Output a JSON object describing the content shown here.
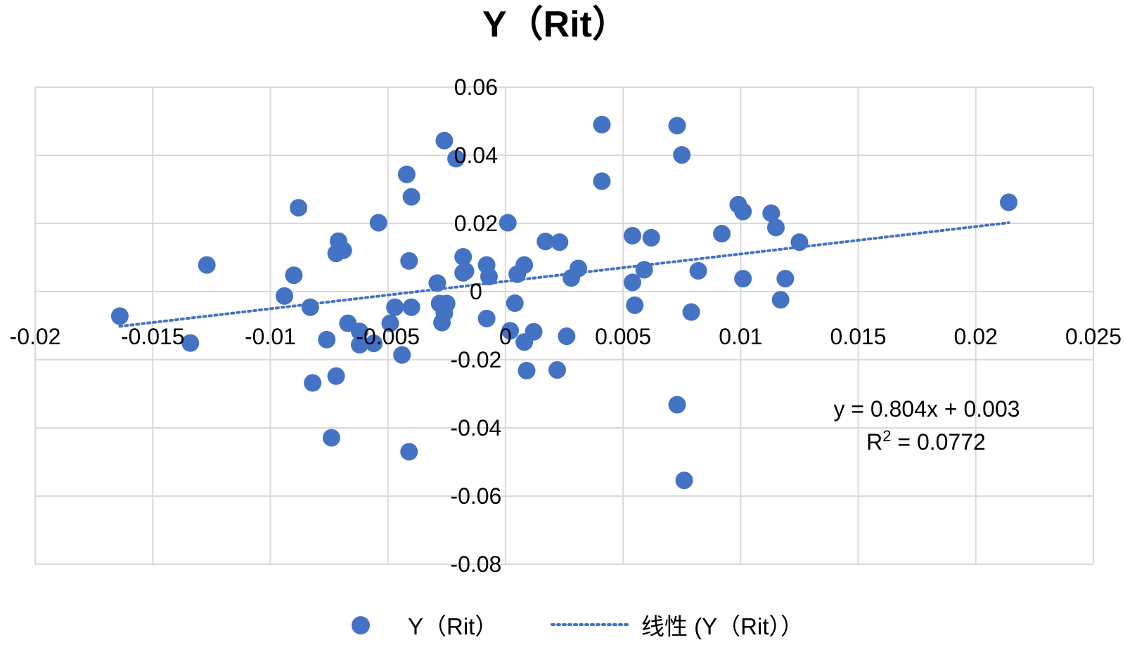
{
  "colors": {
    "marker": "#4472C4",
    "trendline": "#4472C4",
    "grid": "#D9D9D9",
    "text": "#000000"
  },
  "chart_data": {
    "type": "scatter",
    "title": "Y（Rit）",
    "xlim": [
      -0.02,
      0.025
    ],
    "ylim": [
      -0.08,
      0.06
    ],
    "x_ticks": [
      -0.02,
      -0.015,
      -0.01,
      -0.005,
      0,
      0.005,
      0.01,
      0.015,
      0.02,
      0.025
    ],
    "x_tick_labels": [
      "-0.02",
      "-0.015",
      "-0.01",
      "-0.005",
      "0",
      "0.005",
      "0.01",
      "0.015",
      "0.02",
      "0.025"
    ],
    "y_ticks": [
      -0.08,
      -0.06,
      -0.04,
      -0.02,
      0,
      0.02,
      0.04,
      0.06
    ],
    "y_tick_labels": [
      "-0.08",
      "-0.06",
      "-0.04",
      "-0.02",
      "0",
      "0.02",
      "0.04",
      "0.06"
    ],
    "grid": true,
    "legend_position": "bottom",
    "series": [
      {
        "name": "Y（Rit）",
        "kind": "scatter",
        "points": [
          [
            -0.0164,
            -0.0072
          ],
          [
            -0.0134,
            -0.0151
          ],
          [
            -0.0127,
            0.0078
          ],
          [
            -0.0094,
            -0.0013
          ],
          [
            -0.009,
            0.0048
          ],
          [
            -0.0088,
            0.0246
          ],
          [
            -0.0083,
            -0.0046
          ],
          [
            -0.0082,
            -0.0268
          ],
          [
            -0.0076,
            -0.0141
          ],
          [
            -0.0074,
            -0.0429
          ],
          [
            -0.0072,
            -0.0248
          ],
          [
            -0.0071,
            0.0148
          ],
          [
            -0.0072,
            0.0112
          ],
          [
            -0.0069,
            0.0121
          ],
          [
            -0.0067,
            -0.0093
          ],
          [
            -0.0062,
            -0.0117
          ],
          [
            -0.0062,
            -0.0156
          ],
          [
            -0.0056,
            -0.0152
          ],
          [
            -0.0054,
            0.0202
          ],
          [
            -0.0049,
            -0.0093
          ],
          [
            -0.0047,
            -0.0046
          ],
          [
            -0.0044,
            -0.0186
          ],
          [
            -0.0042,
            0.0344
          ],
          [
            -0.0041,
            0.009
          ],
          [
            -0.0041,
            -0.047
          ],
          [
            -0.004,
            -0.0046
          ],
          [
            -0.004,
            0.0278
          ],
          [
            -0.0029,
            0.0025
          ],
          [
            -0.0028,
            -0.0035
          ],
          [
            -0.0027,
            -0.0091
          ],
          [
            -0.0026,
            -0.0063
          ],
          [
            -0.0026,
            0.0443
          ],
          [
            -0.0025,
            -0.0035
          ],
          [
            -0.0021,
            0.039
          ],
          [
            -0.0018,
            0.0102
          ],
          [
            -0.0018,
            0.0055
          ],
          [
            -0.0017,
            0.006
          ],
          [
            -0.0008,
            -0.0079
          ],
          [
            -0.0008,
            0.0078
          ],
          [
            -0.0007,
            0.0044
          ],
          [
            0.0001,
            0.0202
          ],
          [
            0.0002,
            -0.0115
          ],
          [
            0.0004,
            -0.0034
          ],
          [
            0.0005,
            0.0051
          ],
          [
            0.0008,
            0.0078
          ],
          [
            0.0008,
            -0.0148
          ],
          [
            0.0009,
            -0.0232
          ],
          [
            0.0012,
            -0.0118
          ],
          [
            0.0017,
            0.0147
          ],
          [
            0.0022,
            -0.023
          ],
          [
            0.0023,
            0.0145
          ],
          [
            0.0026,
            -0.0131
          ],
          [
            0.0028,
            0.004
          ],
          [
            0.0031,
            0.0068
          ],
          [
            0.0041,
            0.049
          ],
          [
            0.0041,
            0.0324
          ],
          [
            0.0054,
            0.0164
          ],
          [
            0.0054,
            0.0027
          ],
          [
            0.0055,
            -0.004
          ],
          [
            0.0059,
            0.0064
          ],
          [
            0.0062,
            0.0158
          ],
          [
            0.0073,
            0.0487
          ],
          [
            0.0073,
            -0.0332
          ],
          [
            0.0075,
            0.0401
          ],
          [
            0.0076,
            -0.0554
          ],
          [
            0.0079,
            -0.006
          ],
          [
            0.0082,
            0.0061
          ],
          [
            0.0092,
            0.017
          ],
          [
            0.0099,
            0.0255
          ],
          [
            0.0101,
            0.0235
          ],
          [
            0.0101,
            0.0038
          ],
          [
            0.0113,
            0.023
          ],
          [
            0.0115,
            0.0188
          ],
          [
            0.0117,
            -0.0024
          ],
          [
            0.0119,
            0.0038
          ],
          [
            0.0125,
            0.0145
          ],
          [
            0.0214,
            0.0262
          ]
        ]
      },
      {
        "name": "线性 (Y（Rit））",
        "kind": "trendline",
        "slope": 0.804,
        "intercept": 0.003,
        "x_range": [
          -0.0164,
          0.0214
        ]
      }
    ],
    "equation": "y = 0.804x + 0.003",
    "r2_prefix": "R",
    "r2_superscript": "2",
    "r2_value": " = 0.0772"
  },
  "legend": {
    "series_label": "Y（Rit）",
    "trend_label": "线性 (Y（Rit））"
  }
}
